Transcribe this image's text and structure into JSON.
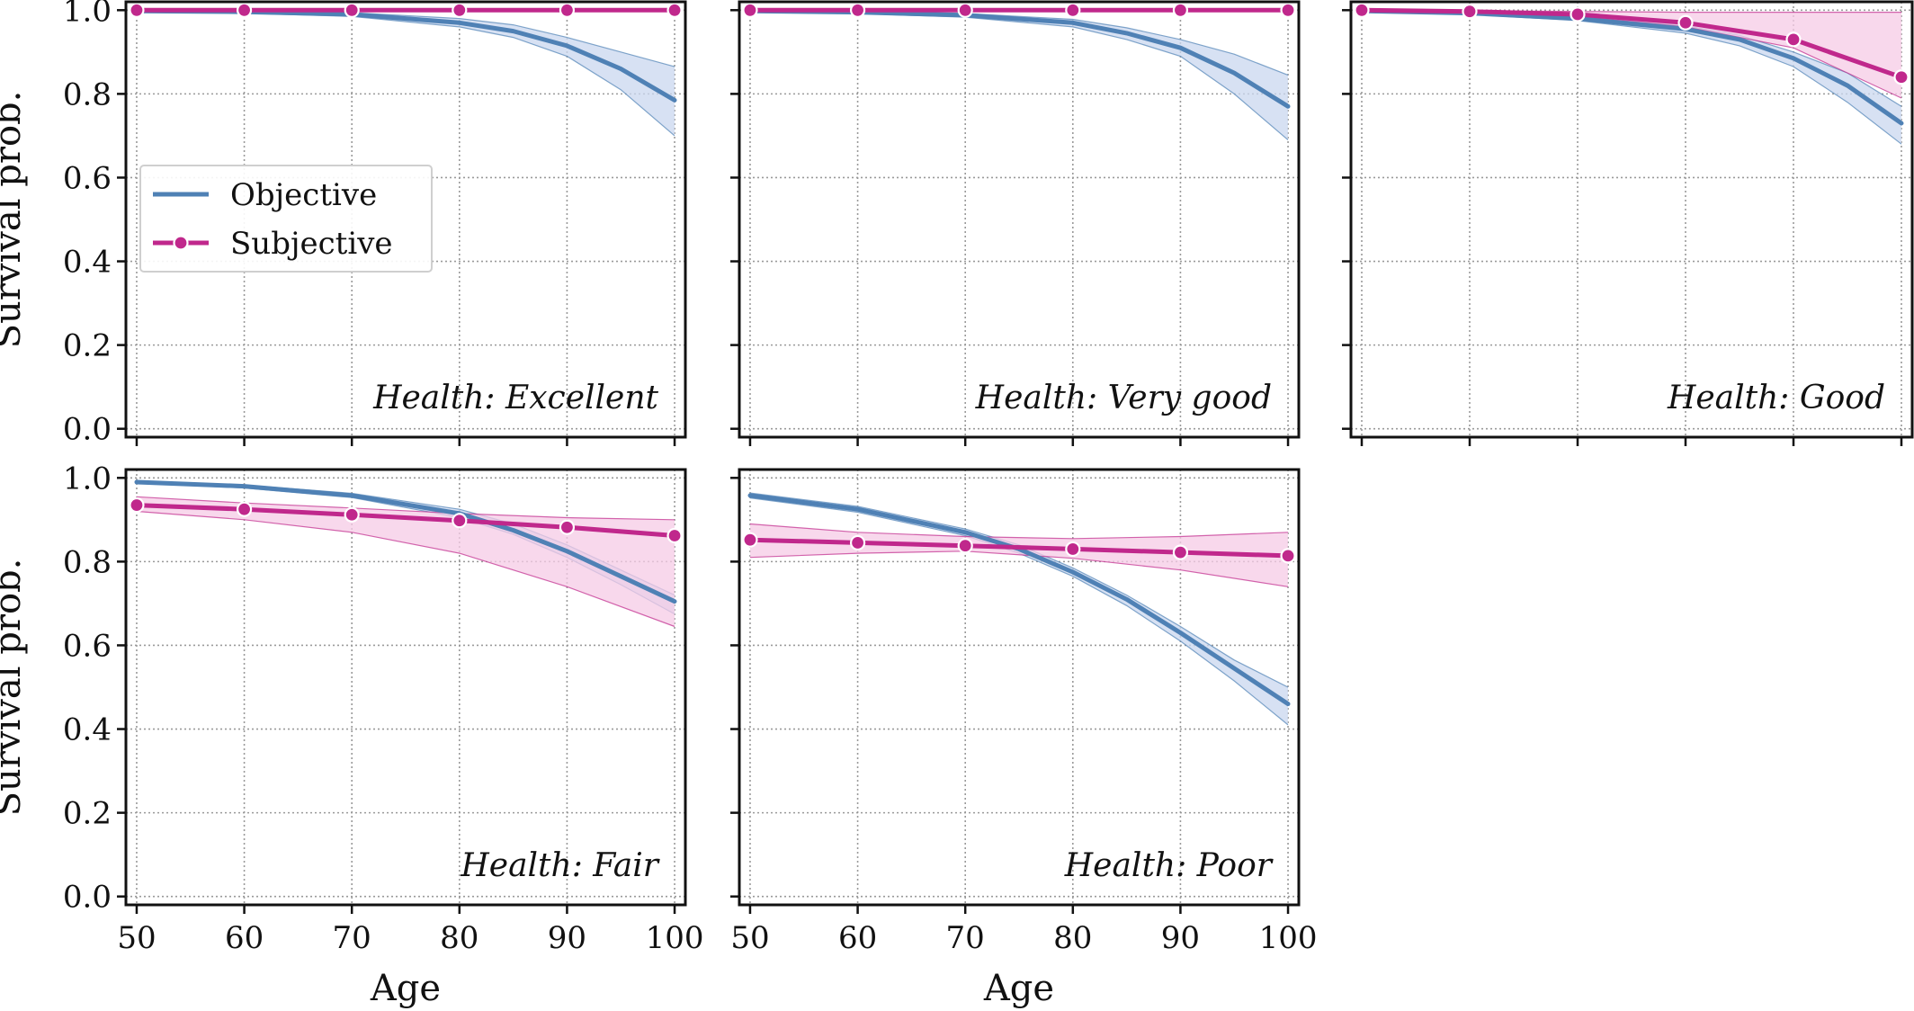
{
  "colors": {
    "objective": "#4f81b5",
    "objective_band": "#c9d7ef",
    "subjective": "#c0288c",
    "subjective_band": "#f6cbe6",
    "grid": "#9a9a9a"
  },
  "legend": {
    "placement": "upper-left of first panel",
    "entries": [
      {
        "label": "Objective",
        "marker": "line"
      },
      {
        "label": "Subjective",
        "marker": "line-with-dot"
      }
    ]
  },
  "chart_data": [
    {
      "type": "line",
      "panel_label": "Health: Excellent",
      "xlim": [
        49,
        101
      ],
      "ylim": [
        -0.02,
        1.02
      ],
      "xticks": [
        50,
        60,
        70,
        80,
        90,
        100
      ],
      "yticks": [
        0.0,
        0.2,
        0.4,
        0.6,
        0.8,
        1.0
      ],
      "show_xtick_labels": false,
      "show_ytick_labels": true,
      "xlabel": "",
      "ylabel": "Survival prob.",
      "grid": true,
      "series": [
        {
          "name": "Objective",
          "x": [
            50,
            60,
            70,
            80,
            85,
            90,
            95,
            100
          ],
          "y": [
            0.998,
            0.996,
            0.99,
            0.97,
            0.95,
            0.915,
            0.86,
            0.785
          ],
          "lower": [
            0.996,
            0.993,
            0.985,
            0.96,
            0.935,
            0.89,
            0.81,
            0.7
          ],
          "upper": [
            0.999,
            0.998,
            0.994,
            0.98,
            0.965,
            0.935,
            0.9,
            0.865
          ]
        },
        {
          "name": "Subjective",
          "x": [
            50,
            60,
            70,
            80,
            90,
            100
          ],
          "y": [
            1.0,
            1.0,
            1.0,
            1.0,
            1.0,
            1.0
          ],
          "lower": [
            0.999,
            0.999,
            0.999,
            0.999,
            0.999,
            0.999
          ],
          "upper": [
            1.0,
            1.0,
            1.0,
            1.0,
            1.0,
            1.0
          ],
          "markers": true
        }
      ]
    },
    {
      "type": "line",
      "panel_label": "Health: Very good",
      "xlim": [
        49,
        101
      ],
      "ylim": [
        -0.02,
        1.02
      ],
      "xticks": [
        50,
        60,
        70,
        80,
        90,
        100
      ],
      "yticks": [
        0.0,
        0.2,
        0.4,
        0.6,
        0.8,
        1.0
      ],
      "show_xtick_labels": false,
      "show_ytick_labels": false,
      "xlabel": "",
      "ylabel": "",
      "grid": true,
      "series": [
        {
          "name": "Objective",
          "x": [
            50,
            60,
            70,
            80,
            85,
            90,
            95,
            100
          ],
          "y": [
            0.998,
            0.995,
            0.988,
            0.97,
            0.945,
            0.91,
            0.85,
            0.77
          ],
          "lower": [
            0.996,
            0.992,
            0.983,
            0.96,
            0.93,
            0.89,
            0.8,
            0.69
          ],
          "upper": [
            0.999,
            0.997,
            0.992,
            0.978,
            0.958,
            0.93,
            0.895,
            0.845
          ]
        },
        {
          "name": "Subjective",
          "x": [
            50,
            60,
            70,
            80,
            90,
            100
          ],
          "y": [
            1.0,
            1.0,
            1.0,
            1.0,
            1.0,
            1.0
          ],
          "lower": [
            0.999,
            0.999,
            0.999,
            0.999,
            0.999,
            0.999
          ],
          "upper": [
            1.0,
            1.0,
            1.0,
            1.0,
            1.0,
            1.0
          ],
          "markers": true
        }
      ]
    },
    {
      "type": "line",
      "panel_label": "Health: Good",
      "xlim": [
        49,
        101
      ],
      "ylim": [
        -0.02,
        1.02
      ],
      "xticks": [
        50,
        60,
        70,
        80,
        90,
        100
      ],
      "yticks": [
        0.0,
        0.2,
        0.4,
        0.6,
        0.8,
        1.0
      ],
      "show_xtick_labels": false,
      "show_ytick_labels": false,
      "xlabel": "",
      "ylabel": "",
      "grid": true,
      "series": [
        {
          "name": "Objective",
          "x": [
            50,
            60,
            70,
            80,
            85,
            90,
            95,
            100
          ],
          "y": [
            0.998,
            0.993,
            0.98,
            0.955,
            0.93,
            0.885,
            0.82,
            0.73
          ],
          "lower": [
            0.996,
            0.99,
            0.975,
            0.945,
            0.915,
            0.865,
            0.78,
            0.68
          ],
          "upper": [
            0.999,
            0.996,
            0.985,
            0.963,
            0.94,
            0.9,
            0.85,
            0.77
          ]
        },
        {
          "name": "Subjective",
          "x": [
            50,
            60,
            70,
            80,
            90,
            100
          ],
          "y": [
            1.0,
            0.997,
            0.99,
            0.97,
            0.93,
            0.84
          ],
          "lower": [
            0.999,
            0.994,
            0.985,
            0.96,
            0.91,
            0.79
          ],
          "upper": [
            1.0,
            0.999,
            0.997,
            0.995,
            0.995,
            0.995
          ],
          "markers": true
        }
      ]
    },
    {
      "type": "line",
      "panel_label": "Health: Fair",
      "xlim": [
        49,
        101
      ],
      "ylim": [
        -0.02,
        1.02
      ],
      "xticks": [
        50,
        60,
        70,
        80,
        90,
        100
      ],
      "yticks": [
        0.0,
        0.2,
        0.4,
        0.6,
        0.8,
        1.0
      ],
      "show_xtick_labels": true,
      "show_ytick_labels": true,
      "xlabel": "Age",
      "ylabel": "Survival prob.",
      "grid": true,
      "series": [
        {
          "name": "Objective",
          "x": [
            50,
            60,
            70,
            80,
            85,
            90,
            95,
            100
          ],
          "y": [
            0.99,
            0.98,
            0.958,
            0.915,
            0.875,
            0.825,
            0.765,
            0.705
          ],
          "lower": [
            0.988,
            0.976,
            0.953,
            0.905,
            0.865,
            0.81,
            0.745,
            0.675
          ],
          "upper": [
            0.992,
            0.983,
            0.963,
            0.925,
            0.89,
            0.84,
            0.78,
            0.72
          ]
        },
        {
          "name": "Subjective",
          "x": [
            50,
            60,
            70,
            80,
            90,
            100
          ],
          "y": [
            0.935,
            0.925,
            0.912,
            0.898,
            0.882,
            0.862
          ],
          "lower": [
            0.92,
            0.9,
            0.87,
            0.82,
            0.74,
            0.645
          ],
          "upper": [
            0.955,
            0.94,
            0.928,
            0.915,
            0.905,
            0.9
          ],
          "markers": true
        }
      ]
    },
    {
      "type": "line",
      "panel_label": "Health: Poor",
      "xlim": [
        49,
        101
      ],
      "ylim": [
        -0.02,
        1.02
      ],
      "xticks": [
        50,
        60,
        70,
        80,
        90,
        100
      ],
      "yticks": [
        0.0,
        0.2,
        0.4,
        0.6,
        0.8,
        1.0
      ],
      "show_xtick_labels": true,
      "show_ytick_labels": false,
      "xlabel": "Age",
      "ylabel": "",
      "grid": true,
      "series": [
        {
          "name": "Objective",
          "x": [
            50,
            60,
            70,
            75,
            80,
            85,
            90,
            95,
            100
          ],
          "y": [
            0.958,
            0.925,
            0.87,
            0.83,
            0.775,
            0.71,
            0.63,
            0.545,
            0.46
          ],
          "lower": [
            0.952,
            0.918,
            0.862,
            0.82,
            0.765,
            0.695,
            0.61,
            0.515,
            0.41
          ],
          "upper": [
            0.964,
            0.932,
            0.878,
            0.84,
            0.785,
            0.72,
            0.645,
            0.565,
            0.5
          ]
        },
        {
          "name": "Subjective",
          "x": [
            50,
            60,
            70,
            80,
            90,
            100
          ],
          "y": [
            0.852,
            0.845,
            0.838,
            0.83,
            0.822,
            0.814
          ],
          "lower": [
            0.81,
            0.82,
            0.825,
            0.808,
            0.78,
            0.74
          ],
          "upper": [
            0.89,
            0.87,
            0.86,
            0.855,
            0.86,
            0.87
          ],
          "markers": true
        }
      ]
    }
  ]
}
